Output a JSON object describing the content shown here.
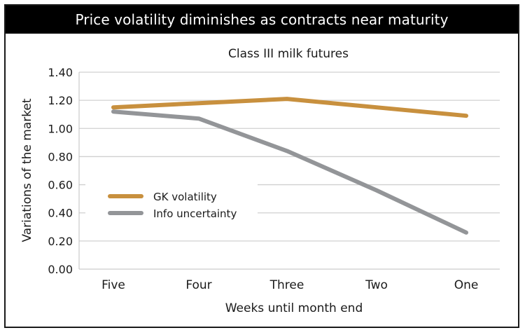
{
  "header": {
    "banner_title": "Price volatility diminishes as contracts near maturity"
  },
  "chart_data": {
    "type": "line",
    "title": "Class III milk futures",
    "xlabel": "Weeks until month end",
    "ylabel": "Variations of the market",
    "categories": [
      "Five",
      "Four",
      "Three",
      "Two",
      "One"
    ],
    "ylim": [
      0,
      1.4
    ],
    "yticks": [
      0.0,
      0.2,
      0.4,
      0.6,
      0.8,
      1.0,
      1.2,
      1.4
    ],
    "ytick_labels": [
      "0.00",
      "0.20",
      "0.40",
      "0.60",
      "0.80",
      "1.00",
      "1.20",
      "1.40"
    ],
    "grid": true,
    "legend_position": "center-left",
    "series": [
      {
        "name": "GK volatility",
        "color": "#C8903E",
        "values": [
          1.15,
          1.18,
          1.21,
          1.15,
          1.09
        ]
      },
      {
        "name": "Info uncertainty",
        "color": "#939598",
        "values": [
          1.12,
          1.07,
          0.84,
          0.56,
          0.26
        ]
      }
    ]
  }
}
